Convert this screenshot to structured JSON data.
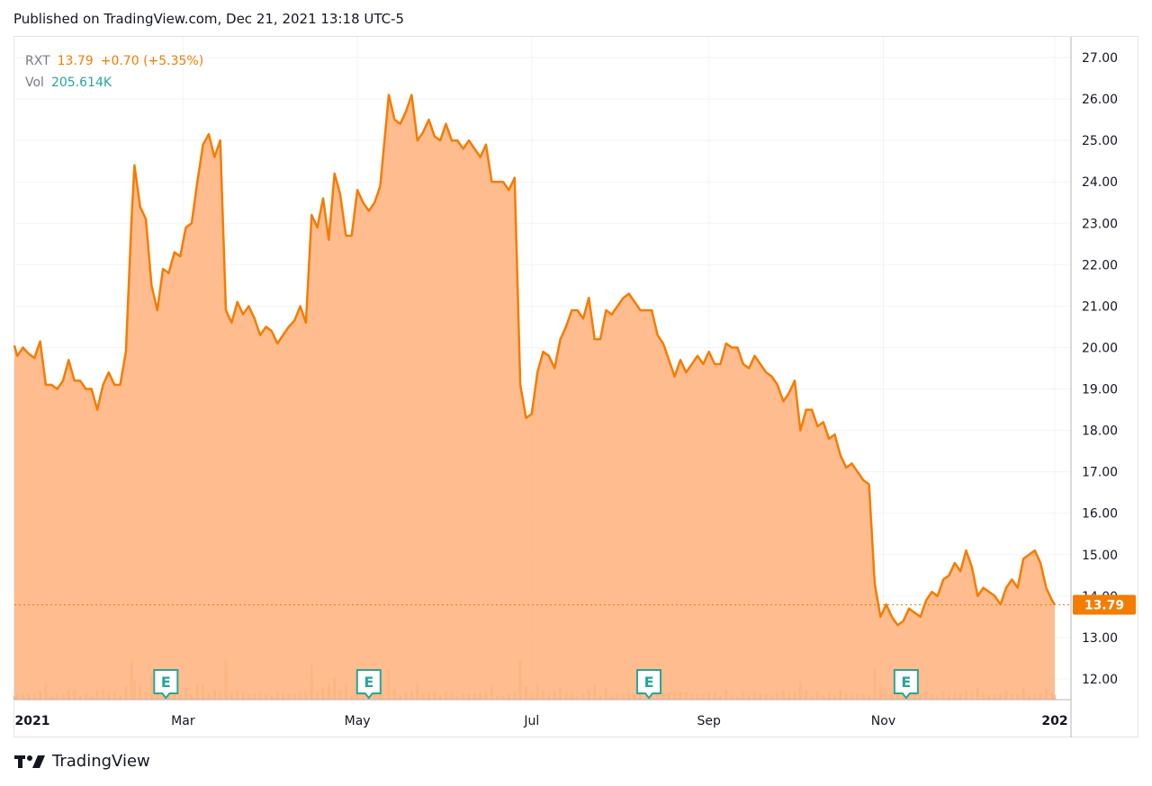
{
  "header": {
    "published": "Published on TradingView.com, Dec 21, 2021 13:18 UTC-5"
  },
  "legend": {
    "symbol": "RXT",
    "price": "13.79",
    "change": "+0.70 (+5.35%)",
    "vol_label": "Vol",
    "vol_value": "205.614K"
  },
  "footer": {
    "brand": "TradingView"
  },
  "colors": {
    "line": "#f57c00",
    "fill": "#ffb07a",
    "volume": "#d4a574",
    "earnings": "#26a69a"
  },
  "chart_data": {
    "type": "area",
    "ylim": [
      11.5,
      27.5
    ],
    "y_ticks": [
      12,
      13,
      14,
      15,
      16,
      17,
      18,
      19,
      20,
      21,
      22,
      23,
      24,
      25,
      26,
      27
    ],
    "y_tick_labels": [
      "12.00",
      "13.00",
      "14.00",
      "15.00",
      "16.00",
      "17.00",
      "18.00",
      "19.00",
      "20.00",
      "21.00",
      "22.00",
      "23.00",
      "24.00",
      "25.00",
      "26.00",
      "27.00"
    ],
    "x_range": [
      "2021-01-01",
      "2021-12-31"
    ],
    "x_ticks": [
      {
        "date": "2021-01-01",
        "label": "2021",
        "bold": true
      },
      {
        "date": "2021-03-01",
        "label": "Mar"
      },
      {
        "date": "2021-05-01",
        "label": "May"
      },
      {
        "date": "2021-07-01",
        "label": "Jul"
      },
      {
        "date": "2021-09-01",
        "label": "Sep"
      },
      {
        "date": "2021-11-01",
        "label": "Nov"
      },
      {
        "date": "2021-12-31",
        "label": "202",
        "bold": true
      }
    ],
    "last_price": 13.79,
    "last_price_label": "13.79",
    "earnings_label": "E",
    "earnings_dates": [
      "2021-02-23",
      "2021-05-05",
      "2021-08-11",
      "2021-11-09"
    ],
    "series": [
      {
        "points": [
          [
            "2021-01-01",
            20.05
          ],
          [
            "2021-01-02",
            19.8
          ],
          [
            "2021-01-04",
            20.0
          ],
          [
            "2021-01-06",
            19.85
          ],
          [
            "2021-01-08",
            19.75
          ],
          [
            "2021-01-10",
            20.15
          ],
          [
            "2021-01-12",
            19.1
          ],
          [
            "2021-01-14",
            19.1
          ],
          [
            "2021-01-16",
            19.0
          ],
          [
            "2021-01-18",
            19.2
          ],
          [
            "2021-01-20",
            19.7
          ],
          [
            "2021-01-22",
            19.2
          ],
          [
            "2021-01-24",
            19.2
          ],
          [
            "2021-01-26",
            19.0
          ],
          [
            "2021-01-28",
            19.0
          ],
          [
            "2021-01-30",
            18.5
          ],
          [
            "2021-02-01",
            19.1
          ],
          [
            "2021-02-03",
            19.4
          ],
          [
            "2021-02-05",
            19.1
          ],
          [
            "2021-02-07",
            19.1
          ],
          [
            "2021-02-09",
            19.9
          ],
          [
            "2021-02-11",
            23.1
          ],
          [
            "2021-02-12",
            24.4
          ],
          [
            "2021-02-14",
            23.4
          ],
          [
            "2021-02-16",
            23.1
          ],
          [
            "2021-02-18",
            21.5
          ],
          [
            "2021-02-20",
            20.9
          ],
          [
            "2021-02-22",
            21.9
          ],
          [
            "2021-02-24",
            21.8
          ],
          [
            "2021-02-26",
            22.3
          ],
          [
            "2021-02-28",
            22.2
          ],
          [
            "2021-03-02",
            22.9
          ],
          [
            "2021-03-04",
            23.0
          ],
          [
            "2021-03-06",
            24.0
          ],
          [
            "2021-03-08",
            24.9
          ],
          [
            "2021-03-10",
            25.15
          ],
          [
            "2021-03-12",
            24.6
          ],
          [
            "2021-03-14",
            25.0
          ],
          [
            "2021-03-16",
            20.9
          ],
          [
            "2021-03-18",
            20.6
          ],
          [
            "2021-03-20",
            21.1
          ],
          [
            "2021-03-22",
            20.8
          ],
          [
            "2021-03-24",
            21.0
          ],
          [
            "2021-03-26",
            20.7
          ],
          [
            "2021-03-28",
            20.3
          ],
          [
            "2021-03-30",
            20.5
          ],
          [
            "2021-04-01",
            20.4
          ],
          [
            "2021-04-03",
            20.1
          ],
          [
            "2021-04-05",
            20.3
          ],
          [
            "2021-04-07",
            20.5
          ],
          [
            "2021-04-09",
            20.65
          ],
          [
            "2021-04-11",
            21.0
          ],
          [
            "2021-04-13",
            20.6
          ],
          [
            "2021-04-15",
            23.2
          ],
          [
            "2021-04-17",
            22.9
          ],
          [
            "2021-04-19",
            23.6
          ],
          [
            "2021-04-21",
            22.6
          ],
          [
            "2021-04-23",
            24.2
          ],
          [
            "2021-04-25",
            23.7
          ],
          [
            "2021-04-27",
            22.7
          ],
          [
            "2021-04-29",
            22.7
          ],
          [
            "2021-05-01",
            23.8
          ],
          [
            "2021-05-03",
            23.5
          ],
          [
            "2021-05-05",
            23.3
          ],
          [
            "2021-05-07",
            23.5
          ],
          [
            "2021-05-09",
            23.9
          ],
          [
            "2021-05-12",
            26.1
          ],
          [
            "2021-05-14",
            25.5
          ],
          [
            "2021-05-16",
            25.4
          ],
          [
            "2021-05-18",
            25.7
          ],
          [
            "2021-05-20",
            26.1
          ],
          [
            "2021-05-22",
            25.0
          ],
          [
            "2021-05-24",
            25.2
          ],
          [
            "2021-05-26",
            25.5
          ],
          [
            "2021-05-28",
            25.1
          ],
          [
            "2021-05-30",
            25.0
          ],
          [
            "2021-06-01",
            25.4
          ],
          [
            "2021-06-03",
            25.0
          ],
          [
            "2021-06-05",
            25.0
          ],
          [
            "2021-06-07",
            24.8
          ],
          [
            "2021-06-09",
            25.0
          ],
          [
            "2021-06-11",
            24.8
          ],
          [
            "2021-06-13",
            24.6
          ],
          [
            "2021-06-15",
            24.9
          ],
          [
            "2021-06-17",
            24.0
          ],
          [
            "2021-06-19",
            24.0
          ],
          [
            "2021-06-21",
            24.0
          ],
          [
            "2021-06-23",
            23.8
          ],
          [
            "2021-06-25",
            24.1
          ],
          [
            "2021-06-27",
            19.1
          ],
          [
            "2021-06-29",
            18.3
          ],
          [
            "2021-07-01",
            18.4
          ],
          [
            "2021-07-03",
            19.4
          ],
          [
            "2021-07-05",
            19.9
          ],
          [
            "2021-07-07",
            19.8
          ],
          [
            "2021-07-09",
            19.5
          ],
          [
            "2021-07-11",
            20.2
          ],
          [
            "2021-07-13",
            20.5
          ],
          [
            "2021-07-15",
            20.9
          ],
          [
            "2021-07-17",
            20.9
          ],
          [
            "2021-07-19",
            20.7
          ],
          [
            "2021-07-21",
            21.2
          ],
          [
            "2021-07-23",
            20.2
          ],
          [
            "2021-07-25",
            20.2
          ],
          [
            "2021-07-27",
            20.9
          ],
          [
            "2021-07-29",
            20.8
          ],
          [
            "2021-07-31",
            21.0
          ],
          [
            "2021-08-02",
            21.2
          ],
          [
            "2021-08-04",
            21.3
          ],
          [
            "2021-08-06",
            21.1
          ],
          [
            "2021-08-08",
            20.9
          ],
          [
            "2021-08-10",
            20.9
          ],
          [
            "2021-08-12",
            20.9
          ],
          [
            "2021-08-14",
            20.3
          ],
          [
            "2021-08-16",
            20.1
          ],
          [
            "2021-08-18",
            19.7
          ],
          [
            "2021-08-20",
            19.3
          ],
          [
            "2021-08-22",
            19.7
          ],
          [
            "2021-08-24",
            19.4
          ],
          [
            "2021-08-26",
            19.6
          ],
          [
            "2021-08-28",
            19.8
          ],
          [
            "2021-08-30",
            19.6
          ],
          [
            "2021-09-01",
            19.9
          ],
          [
            "2021-09-03",
            19.6
          ],
          [
            "2021-09-05",
            19.6
          ],
          [
            "2021-09-07",
            20.1
          ],
          [
            "2021-09-09",
            20.0
          ],
          [
            "2021-09-11",
            20.0
          ],
          [
            "2021-09-13",
            19.6
          ],
          [
            "2021-09-15",
            19.5
          ],
          [
            "2021-09-17",
            19.8
          ],
          [
            "2021-09-19",
            19.6
          ],
          [
            "2021-09-21",
            19.4
          ],
          [
            "2021-09-23",
            19.3
          ],
          [
            "2021-09-25",
            19.1
          ],
          [
            "2021-09-27",
            18.7
          ],
          [
            "2021-09-29",
            18.9
          ],
          [
            "2021-10-01",
            19.2
          ],
          [
            "2021-10-03",
            18.0
          ],
          [
            "2021-10-05",
            18.5
          ],
          [
            "2021-10-07",
            18.5
          ],
          [
            "2021-10-09",
            18.1
          ],
          [
            "2021-10-11",
            18.2
          ],
          [
            "2021-10-13",
            17.8
          ],
          [
            "2021-10-15",
            17.9
          ],
          [
            "2021-10-17",
            17.4
          ],
          [
            "2021-10-19",
            17.1
          ],
          [
            "2021-10-21",
            17.2
          ],
          [
            "2021-10-23",
            17.0
          ],
          [
            "2021-10-25",
            16.8
          ],
          [
            "2021-10-27",
            16.7
          ],
          [
            "2021-10-29",
            14.3
          ],
          [
            "2021-10-31",
            13.5
          ],
          [
            "2021-11-02",
            13.8
          ],
          [
            "2021-11-04",
            13.5
          ],
          [
            "2021-11-06",
            13.3
          ],
          [
            "2021-11-08",
            13.4
          ],
          [
            "2021-11-10",
            13.7
          ],
          [
            "2021-11-12",
            13.6
          ],
          [
            "2021-11-14",
            13.5
          ],
          [
            "2021-11-16",
            13.9
          ],
          [
            "2021-11-18",
            14.1
          ],
          [
            "2021-11-20",
            14.0
          ],
          [
            "2021-11-22",
            14.4
          ],
          [
            "2021-11-24",
            14.5
          ],
          [
            "2021-11-26",
            14.8
          ],
          [
            "2021-11-28",
            14.6
          ],
          [
            "2021-11-30",
            15.1
          ],
          [
            "2021-12-02",
            14.7
          ],
          [
            "2021-12-04",
            14.0
          ],
          [
            "2021-12-06",
            14.2
          ],
          [
            "2021-12-08",
            14.1
          ],
          [
            "2021-12-10",
            14.0
          ],
          [
            "2021-12-12",
            13.8
          ],
          [
            "2021-12-14",
            14.2
          ],
          [
            "2021-12-16",
            14.4
          ],
          [
            "2021-12-18",
            14.2
          ],
          [
            "2021-12-20",
            14.9
          ],
          [
            "2021-12-22",
            15.0
          ],
          [
            "2021-12-24",
            15.1
          ],
          [
            "2021-12-26",
            14.8
          ],
          [
            "2021-12-28",
            14.2
          ],
          [
            "2021-12-30",
            13.9
          ],
          [
            "2021-12-31",
            13.79
          ]
        ]
      }
    ]
  }
}
